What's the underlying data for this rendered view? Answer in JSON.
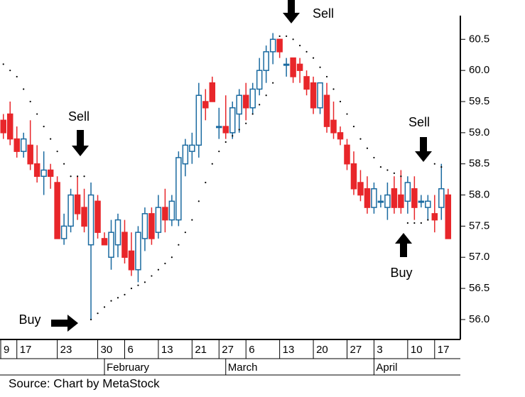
{
  "chart_data": {
    "type": "candlestick",
    "source": "Source: Chart by MetaStock",
    "up_color": "#1a6aa0",
    "down_color": "#e8262a",
    "xlim": [
      -0.5,
      67.5
    ],
    "ylim": [
      55.68,
      60.88
    ],
    "yticks": [
      {
        "value": 56,
        "label": "56.0"
      },
      56.5,
      {
        "value": 57,
        "label": "57.0"
      },
      57.5,
      {
        "value": 58,
        "label": "58.0"
      },
      58.5,
      {
        "value": 59,
        "label": "59.0"
      },
      59.5,
      {
        "value": 60,
        "label": "60.0"
      },
      60.5
    ],
    "xticks": [
      {
        "value": -0.5,
        "label": "9"
      },
      {
        "value": 2,
        "label": "17"
      },
      {
        "value": 8,
        "label": "23"
      },
      {
        "value": 14,
        "label": "30"
      },
      {
        "value": 18,
        "label": "6"
      },
      {
        "value": 23,
        "label": "13"
      },
      {
        "value": 28,
        "label": "21"
      },
      {
        "value": 32,
        "label": "27"
      },
      {
        "value": 36,
        "label": "6"
      },
      {
        "value": 41,
        "label": "13"
      },
      {
        "value": 46,
        "label": "20"
      },
      {
        "value": 51,
        "label": "27"
      },
      {
        "value": 55,
        "label": "3"
      },
      {
        "value": 60,
        "label": "10"
      },
      {
        "value": 64,
        "label": "17"
      }
    ],
    "month_ticks": [
      {
        "value": 15,
        "label": "February"
      },
      {
        "value": 33,
        "label": "March"
      },
      {
        "value": 55,
        "label": "April"
      }
    ],
    "open": [
      59.2,
      59.3,
      58.9,
      58.7,
      58.8,
      58.5,
      58.3,
      58.4,
      58.2,
      57.3,
      57.5,
      58.0,
      57.8,
      57.2,
      57.9,
      57.3,
      57.0,
      57.2,
      57.4,
      57.1,
      56.8,
      57.3,
      57.7,
      57.4,
      57.8,
      57.6,
      57.6,
      58.5,
      58.7,
      58.8,
      59.5,
      59.8,
      59.1,
      59.1,
      59.0,
      59.3,
      59.6,
      59.4,
      59.7,
      60.0,
      60.3,
      60.5,
      60.1,
      60.2,
      60.1,
      59.9,
      59.8,
      59.4,
      59.6,
      59.2,
      59.0,
      58.8,
      58.5,
      58.2,
      58.1,
      57.8,
      57.9,
      57.8,
      58.1,
      58.0,
      57.9,
      58.1,
      57.9,
      57.8,
      57.7,
      57.8,
      58.0
    ],
    "high": [
      59.3,
      59.5,
      59.1,
      59.0,
      59.2,
      58.8,
      58.7,
      58.5,
      58.3,
      57.7,
      58.1,
      58.3,
      58.1,
      58.2,
      58.0,
      57.4,
      57.6,
      57.7,
      57.6,
      57.4,
      57.5,
      57.8,
      57.8,
      58.0,
      58.1,
      58.0,
      58.7,
      58.9,
      59.0,
      59.8,
      59.7,
      59.9,
      59.4,
      59.6,
      59.5,
      59.7,
      59.8,
      59.8,
      60.2,
      60.4,
      60.6,
      60.5,
      60.2,
      60.2,
      60.2,
      60.0,
      59.9,
      59.8,
      59.8,
      59.5,
      59.1,
      58.9,
      58.7,
      58.4,
      58.3,
      58.2,
      58.0,
      58.2,
      58.3,
      58.4,
      58.3,
      58.3,
      58.0,
      58.0,
      58.0,
      58.5,
      58.1
    ],
    "low": [
      58.9,
      58.8,
      58.6,
      58.6,
      58.4,
      58.2,
      58.0,
      58.1,
      57.3,
      57.2,
      57.4,
      57.6,
      57.4,
      56.0,
      57.3,
      57.2,
      56.8,
      57.0,
      56.9,
      56.7,
      56.6,
      57.1,
      57.2,
      57.3,
      57.4,
      57.5,
      57.5,
      58.3,
      58.5,
      58.6,
      59.2,
      59.5,
      58.9,
      58.9,
      58.9,
      59.0,
      59.2,
      59.3,
      59.6,
      59.8,
      60.1,
      60.2,
      59.9,
      59.8,
      59.8,
      59.6,
      59.3,
      59.3,
      59.0,
      58.9,
      58.8,
      58.4,
      58.0,
      57.9,
      57.7,
      57.7,
      57.8,
      57.6,
      57.7,
      57.7,
      57.7,
      57.6,
      57.8,
      57.6,
      57.4,
      57.6,
      57.3
    ],
    "close": [
      59.0,
      58.9,
      58.7,
      58.9,
      58.5,
      58.3,
      58.4,
      58.3,
      57.3,
      57.5,
      58.0,
      57.7,
      57.5,
      58.0,
      57.4,
      57.2,
      57.4,
      57.6,
      57.0,
      56.8,
      57.4,
      57.7,
      57.3,
      57.8,
      57.6,
      57.9,
      58.6,
      58.8,
      58.8,
      59.6,
      59.4,
      59.5,
      59.1,
      59.0,
      59.4,
      59.6,
      59.4,
      59.7,
      60.0,
      60.3,
      60.5,
      60.3,
      60.1,
      59.9,
      60.0,
      59.7,
      59.4,
      59.8,
      59.1,
      59.0,
      58.9,
      58.5,
      58.1,
      58.0,
      57.8,
      58.1,
      57.9,
      58.0,
      57.8,
      57.8,
      58.2,
      57.8,
      57.9,
      57.9,
      57.6,
      58.1,
      57.3
    ],
    "sar": [
      60.1,
      60.0,
      59.9,
      59.7,
      59.5,
      59.3,
      59.1,
      58.9,
      58.7,
      58.5,
      58.3,
      58.3,
      58.3,
      56.0,
      56.1,
      56.2,
      56.3,
      56.35,
      56.4,
      56.5,
      56.55,
      56.6,
      56.7,
      56.8,
      56.9,
      57.0,
      57.2,
      57.4,
      57.6,
      57.9,
      58.2,
      58.5,
      58.7,
      58.85,
      58.95,
      59.05,
      59.15,
      59.3,
      59.45,
      59.6,
      59.8,
      60.55,
      60.55,
      60.5,
      60.4,
      60.3,
      60.2,
      60.05,
      59.9,
      59.7,
      59.5,
      59.3,
      59.1,
      58.9,
      58.75,
      58.6,
      58.45,
      58.4,
      58.35,
      58.3,
      57.55,
      57.55,
      57.55,
      57.6,
      58.5,
      58.45,
      null
    ],
    "annotations": [
      "Sell",
      "Buy",
      "Sell",
      "Sell",
      "Buy"
    ]
  }
}
